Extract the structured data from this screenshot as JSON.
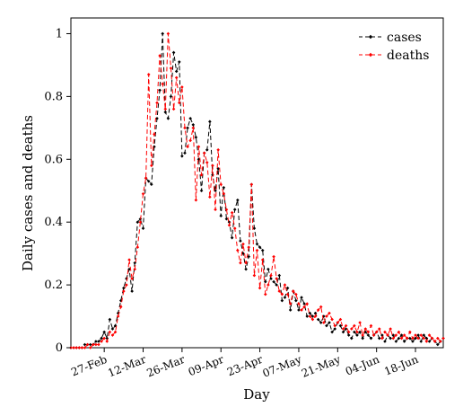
{
  "chart_data": {
    "type": "line",
    "xlabel": "Day",
    "ylabel": "Daily cases and deaths",
    "x_start": "2020-02-15",
    "x_end": "2020-06-28",
    "ylim": [
      0,
      1.05
    ],
    "y_ticks": [
      {
        "value": 0,
        "label": "0"
      },
      {
        "value": 0.2,
        "label": "0.2"
      },
      {
        "value": 0.4,
        "label": "0.4"
      },
      {
        "value": 0.6,
        "label": "0.6"
      },
      {
        "value": 0.8,
        "label": "0.8"
      },
      {
        "value": 1,
        "label": "1"
      }
    ],
    "x_ticks": [
      {
        "date": "2020-02-27",
        "label": "27-Feb"
      },
      {
        "date": "2020-03-12",
        "label": "12-Mar"
      },
      {
        "date": "2020-03-26",
        "label": "26-Mar"
      },
      {
        "date": "2020-04-09",
        "label": "09-Apr"
      },
      {
        "date": "2020-04-23",
        "label": "23-Apr"
      },
      {
        "date": "2020-05-07",
        "label": "07-May"
      },
      {
        "date": "2020-05-21",
        "label": "21-May"
      },
      {
        "date": "2020-06-04",
        "label": "04-Jun"
      },
      {
        "date": "2020-06-18",
        "label": "18-Jun"
      }
    ],
    "legend_position": "top-right",
    "grid": false,
    "series": [
      {
        "name": "cases",
        "color": "#000000",
        "marker": "diamond",
        "values": [
          0.0,
          0.0,
          0.0,
          0.0,
          0.0,
          0.01,
          0.01,
          0.01,
          0.01,
          0.02,
          0.02,
          0.03,
          0.05,
          0.03,
          0.09,
          0.06,
          0.07,
          0.11,
          0.15,
          0.19,
          0.22,
          0.25,
          0.18,
          0.27,
          0.4,
          0.41,
          0.38,
          0.54,
          0.53,
          0.52,
          0.64,
          0.73,
          0.82,
          1.0,
          0.75,
          0.73,
          0.8,
          0.94,
          0.88,
          0.91,
          0.61,
          0.62,
          0.7,
          0.73,
          0.71,
          0.67,
          0.6,
          0.5,
          0.62,
          0.63,
          0.72,
          0.55,
          0.5,
          0.57,
          0.42,
          0.51,
          0.41,
          0.4,
          0.35,
          0.44,
          0.47,
          0.34,
          0.3,
          0.25,
          0.29,
          0.52,
          0.38,
          0.33,
          0.32,
          0.31,
          0.21,
          0.25,
          0.22,
          0.21,
          0.2,
          0.23,
          0.15,
          0.16,
          0.19,
          0.12,
          0.18,
          0.15,
          0.12,
          0.16,
          0.14,
          0.1,
          0.11,
          0.1,
          0.11,
          0.09,
          0.08,
          0.1,
          0.07,
          0.08,
          0.05,
          0.06,
          0.08,
          0.07,
          0.05,
          0.06,
          0.04,
          0.03,
          0.05,
          0.04,
          0.05,
          0.03,
          0.05,
          0.04,
          0.03,
          0.04,
          0.05,
          0.03,
          0.04,
          0.02,
          0.04,
          0.03,
          0.04,
          0.02,
          0.03,
          0.04,
          0.02,
          0.03,
          0.03,
          0.02,
          0.03,
          0.04,
          0.02,
          0.04,
          0.03,
          0.02,
          0.03,
          0.02,
          0.01,
          0.02,
          0.03
        ]
      },
      {
        "name": "deaths",
        "color": "#ff0000",
        "marker": "diamond",
        "values": [
          0.0,
          0.0,
          0.0,
          0.0,
          0.0,
          0.0,
          0.01,
          0.0,
          0.01,
          0.01,
          0.01,
          0.02,
          0.03,
          0.02,
          0.05,
          0.04,
          0.05,
          0.1,
          0.13,
          0.18,
          0.2,
          0.28,
          0.22,
          0.25,
          0.32,
          0.4,
          0.49,
          0.54,
          0.87,
          0.58,
          0.68,
          0.78,
          0.93,
          0.84,
          0.76,
          1.0,
          0.89,
          0.76,
          0.86,
          0.78,
          0.83,
          0.7,
          0.64,
          0.66,
          0.7,
          0.47,
          0.64,
          0.55,
          0.62,
          0.59,
          0.48,
          0.58,
          0.44,
          0.63,
          0.52,
          0.49,
          0.44,
          0.39,
          0.43,
          0.38,
          0.31,
          0.27,
          0.33,
          0.27,
          0.32,
          0.52,
          0.23,
          0.31,
          0.19,
          0.28,
          0.17,
          0.2,
          0.23,
          0.29,
          0.22,
          0.18,
          0.17,
          0.2,
          0.17,
          0.14,
          0.18,
          0.17,
          0.14,
          0.12,
          0.13,
          0.14,
          0.1,
          0.09,
          0.1,
          0.12,
          0.13,
          0.08,
          0.1,
          0.11,
          0.09,
          0.07,
          0.08,
          0.09,
          0.06,
          0.07,
          0.05,
          0.06,
          0.07,
          0.05,
          0.08,
          0.04,
          0.06,
          0.05,
          0.07,
          0.04,
          0.05,
          0.06,
          0.03,
          0.05,
          0.04,
          0.06,
          0.03,
          0.04,
          0.05,
          0.03,
          0.04,
          0.03,
          0.05,
          0.03,
          0.04,
          0.03,
          0.04,
          0.03,
          0.02,
          0.04,
          0.03,
          0.02,
          0.03,
          0.02,
          0.03
        ]
      }
    ]
  }
}
